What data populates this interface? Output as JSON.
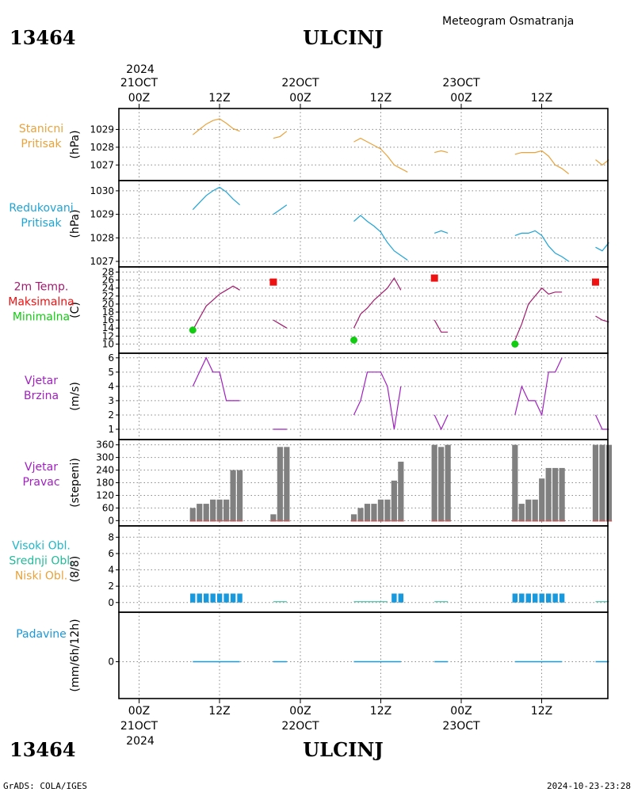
{
  "header": {
    "station_id": "13464",
    "station_name": "ULCINJ",
    "subtitle": "Meteogram Osmatranja"
  },
  "time_axis": {
    "top_year": "2024",
    "labels_top": [
      {
        "day": "21OCT",
        "hour": "00Z"
      },
      {
        "day": "",
        "hour": "12Z"
      },
      {
        "day": "22OCT",
        "hour": "00Z"
      },
      {
        "day": "",
        "hour": "12Z"
      },
      {
        "day": "23OCT",
        "hour": "00Z"
      },
      {
        "day": "",
        "hour": "12Z"
      }
    ],
    "labels_bottom": [
      {
        "hour": "00Z",
        "day": "21OCT"
      },
      {
        "hour": "12Z",
        "day": ""
      },
      {
        "hour": "00Z",
        "day": "22OCT"
      },
      {
        "hour": "12Z",
        "day": ""
      },
      {
        "hour": "00Z",
        "day": "23OCT"
      },
      {
        "hour": "12Z",
        "day": ""
      }
    ],
    "bottom_year": "2024"
  },
  "footer": {
    "left": "GrADS: COLA/IGES",
    "right": "2024-10-23-23:28"
  },
  "colors": {
    "station_pressure": "#e8a33c",
    "reduced_pressure": "#1fa4d6",
    "temperature": "#a01b6e",
    "tmax": "#ee1111",
    "tmin": "#11cc11",
    "wind_speed": "#a020c0",
    "wind_dir_bar": "#808080",
    "wind_dir_baseline": "#d04040",
    "cloud_high": "#1fb8c8",
    "cloud_mid": "#22bb99",
    "cloud_low": "#e8a33c",
    "cloud_bar": "#1899dd",
    "precip": "#1899dd"
  },
  "chart_data": [
    {
      "type": "line",
      "name": "stanicni",
      "left_labels": [
        "Stanicni",
        "Pritisak"
      ],
      "unit": "(hPa)",
      "ylim": [
        1026.3,
        1030.0
      ],
      "yticks": [
        1027,
        1028,
        1029
      ],
      "series": [
        {
          "segments": [
            [
              [
                9,
                1028.7
              ],
              [
                10,
                1029.0
              ],
              [
                11,
                1029.3
              ],
              [
                12,
                1029.5
              ],
              [
                13,
                1029.6
              ],
              [
                14,
                1029.35
              ],
              [
                15,
                1029.05
              ],
              [
                16,
                1028.9
              ]
            ],
            [
              [
                21,
                1028.5
              ],
              [
                22,
                1028.6
              ],
              [
                23,
                1028.9
              ]
            ],
            [
              [
                33,
                1028.3
              ],
              [
                34,
                1028.5
              ],
              [
                35,
                1028.3
              ],
              [
                36,
                1028.1
              ],
              [
                37,
                1027.9
              ],
              [
                38,
                1027.5
              ],
              [
                39,
                1027.0
              ],
              [
                40,
                1026.8
              ],
              [
                41,
                1026.6
              ]
            ],
            [
              [
                45,
                1027.7
              ],
              [
                46,
                1027.8
              ],
              [
                47,
                1027.7
              ]
            ],
            [
              [
                57,
                1027.6
              ],
              [
                58,
                1027.7
              ],
              [
                59,
                1027.7
              ],
              [
                60,
                1027.7
              ],
              [
                61,
                1027.8
              ],
              [
                62,
                1027.5
              ],
              [
                63,
                1027.0
              ],
              [
                64,
                1026.8
              ],
              [
                65,
                1026.5
              ]
            ],
            [
              [
                69,
                1027.3
              ],
              [
                70,
                1027.0
              ],
              [
                71,
                1027.3
              ]
            ]
          ]
        }
      ]
    },
    {
      "type": "line",
      "name": "redukovani",
      "left_labels": [
        "Redukovani",
        "Pritisak"
      ],
      "unit": "(hPa)",
      "ylim": [
        1026.9,
        1030.3
      ],
      "yticks": [
        1027,
        1028,
        1029,
        1030
      ],
      "series": [
        {
          "segments": [
            [
              [
                9,
                1029.2
              ],
              [
                10,
                1029.5
              ],
              [
                11,
                1029.8
              ],
              [
                12,
                1030.0
              ],
              [
                13,
                1030.15
              ],
              [
                14,
                1029.95
              ],
              [
                15,
                1029.65
              ],
              [
                16,
                1029.4
              ]
            ],
            [
              [
                21,
                1029.0
              ],
              [
                22,
                1029.2
              ],
              [
                23,
                1029.4
              ]
            ],
            [
              [
                33,
                1028.7
              ],
              [
                34,
                1028.95
              ],
              [
                35,
                1028.7
              ],
              [
                36,
                1028.5
              ],
              [
                37,
                1028.25
              ],
              [
                38,
                1027.8
              ],
              [
                39,
                1027.45
              ],
              [
                40,
                1027.25
              ],
              [
                41,
                1027.05
              ]
            ],
            [
              [
                45,
                1028.2
              ],
              [
                46,
                1028.3
              ],
              [
                47,
                1028.2
              ]
            ],
            [
              [
                57,
                1028.1
              ],
              [
                58,
                1028.2
              ],
              [
                59,
                1028.2
              ],
              [
                60,
                1028.3
              ],
              [
                61,
                1028.1
              ],
              [
                62,
                1027.65
              ],
              [
                63,
                1027.35
              ],
              [
                64,
                1027.2
              ],
              [
                65,
                1027.0
              ]
            ],
            [
              [
                69,
                1027.6
              ],
              [
                70,
                1027.45
              ],
              [
                71,
                1027.8
              ]
            ]
          ]
        }
      ]
    },
    {
      "type": "line",
      "name": "temperatura",
      "left_labels": [
        "2m Temp.",
        "Maksimalna",
        "Minimalna"
      ],
      "unit": "(C)",
      "ylim": [
        8.5,
        28.5
      ],
      "yticks": [
        10,
        12,
        14,
        16,
        18,
        20,
        22,
        24,
        26,
        28
      ],
      "series": [
        {
          "segments": [
            [
              [
                9,
                13.5
              ],
              [
                10,
                16.5
              ],
              [
                11,
                19.5
              ],
              [
                12,
                21.0
              ],
              [
                13,
                22.5
              ],
              [
                14,
                23.5
              ],
              [
                15,
                24.5
              ],
              [
                16,
                23.5
              ]
            ],
            [
              [
                21,
                16.0
              ],
              [
                22,
                15.0
              ],
              [
                23,
                14.0
              ]
            ],
            [
              [
                33,
                14.0
              ],
              [
                34,
                17.5
              ],
              [
                35,
                19.0
              ],
              [
                36,
                21.0
              ],
              [
                37,
                22.5
              ],
              [
                38,
                24.0
              ],
              [
                39,
                26.5
              ],
              [
                40,
                23.5
              ]
            ],
            [
              [
                45,
                16.0
              ],
              [
                46,
                13.0
              ],
              [
                47,
                13.0
              ]
            ],
            [
              [
                57,
                11.0
              ],
              [
                58,
                15.0
              ],
              [
                59,
                20.0
              ],
              [
                60,
                22.0
              ],
              [
                61,
                24.0
              ],
              [
                62,
                22.5
              ],
              [
                63,
                23.0
              ],
              [
                64,
                23.0
              ]
            ],
            [
              [
                69,
                17.0
              ],
              [
                70,
                16.0
              ],
              [
                71,
                15.5
              ]
            ]
          ]
        }
      ],
      "tmax": [
        [
          21,
          25.5
        ],
        [
          45,
          26.5
        ],
        [
          69,
          25.5
        ]
      ],
      "tmin": [
        [
          9,
          13.5
        ],
        [
          33,
          11.0
        ],
        [
          57,
          10.0
        ]
      ]
    },
    {
      "type": "line",
      "name": "vjetar_brzina",
      "left_labels": [
        "Vjetar",
        "Brzina"
      ],
      "unit": "(m/s)",
      "ylim": [
        0.5,
        6.1
      ],
      "yticks": [
        1,
        2,
        3,
        4,
        5,
        6
      ],
      "series": [
        {
          "segments": [
            [
              [
                9,
                4
              ],
              [
                10,
                5
              ],
              [
                11,
                6
              ],
              [
                12,
                5
              ],
              [
                13,
                5
              ],
              [
                14,
                3
              ],
              [
                15,
                3
              ],
              [
                16,
                3
              ]
            ],
            [
              [
                21,
                1
              ],
              [
                22,
                1
              ],
              [
                23,
                1
              ]
            ],
            [
              [
                33,
                2
              ],
              [
                34,
                3
              ],
              [
                35,
                5
              ],
              [
                36,
                5
              ],
              [
                37,
                5
              ],
              [
                38,
                4
              ],
              [
                39,
                1
              ],
              [
                40,
                4
              ]
            ],
            [
              [
                45,
                2
              ],
              [
                46,
                1
              ],
              [
                47,
                2
              ]
            ],
            [
              [
                57,
                2
              ],
              [
                58,
                4
              ],
              [
                59,
                3
              ],
              [
                60,
                3
              ],
              [
                61,
                2
              ],
              [
                62,
                5
              ],
              [
                63,
                5
              ],
              [
                64,
                6
              ]
            ],
            [
              [
                69,
                2
              ],
              [
                70,
                1
              ],
              [
                71,
                1
              ]
            ]
          ]
        }
      ]
    },
    {
      "type": "bar",
      "name": "vjetar_pravac",
      "left_labels": [
        "Vjetar",
        "Pravac"
      ],
      "unit": "(stepeni)",
      "ylim": [
        -10,
        370
      ],
      "yticks": [
        0,
        60,
        120,
        180,
        240,
        300,
        360
      ],
      "x": [
        9,
        10,
        11,
        12,
        13,
        14,
        15,
        16,
        21,
        22,
        23,
        33,
        34,
        35,
        36,
        37,
        38,
        39,
        40,
        45,
        46,
        47,
        57,
        58,
        59,
        60,
        61,
        62,
        63,
        64,
        69,
        70,
        71
      ],
      "values": [
        60,
        80,
        80,
        100,
        100,
        100,
        240,
        240,
        30,
        350,
        350,
        30,
        60,
        80,
        80,
        100,
        100,
        190,
        280,
        360,
        350,
        360,
        360,
        80,
        100,
        100,
        200,
        250,
        250,
        250,
        360,
        360,
        360
      ]
    },
    {
      "type": "bar",
      "name": "oblaci",
      "left_labels": [
        "Visoki Obl.",
        "Srednji Obl.",
        "Niski Obl."
      ],
      "unit": "(8/8)",
      "ylim": [
        -0.8,
        9
      ],
      "yticks": [
        0,
        2,
        4,
        6,
        8
      ],
      "x": [
        9,
        10,
        11,
        12,
        13,
        14,
        15,
        16,
        39,
        40,
        57,
        58,
        59,
        60,
        61,
        62,
        63,
        64
      ],
      "values": [
        1,
        1,
        1,
        1,
        1,
        1,
        1,
        1,
        1,
        1,
        1,
        1,
        1,
        1,
        1,
        1,
        1,
        1
      ]
    },
    {
      "type": "line",
      "name": "padavine",
      "left_labels": [
        "Padavine"
      ],
      "unit": "(mm/6h/12h)",
      "yticks": [
        0
      ],
      "series": [
        {
          "segments": [
            [
              [
                9,
                0
              ],
              [
                16,
                0
              ]
            ],
            [
              [
                21,
                0
              ],
              [
                23,
                0
              ]
            ],
            [
              [
                33,
                0
              ],
              [
                40,
                0
              ]
            ],
            [
              [
                45,
                0
              ],
              [
                47,
                0
              ]
            ],
            [
              [
                57,
                0
              ],
              [
                64,
                0
              ]
            ],
            [
              [
                69,
                0
              ],
              [
                71,
                0
              ]
            ]
          ]
        }
      ]
    }
  ]
}
